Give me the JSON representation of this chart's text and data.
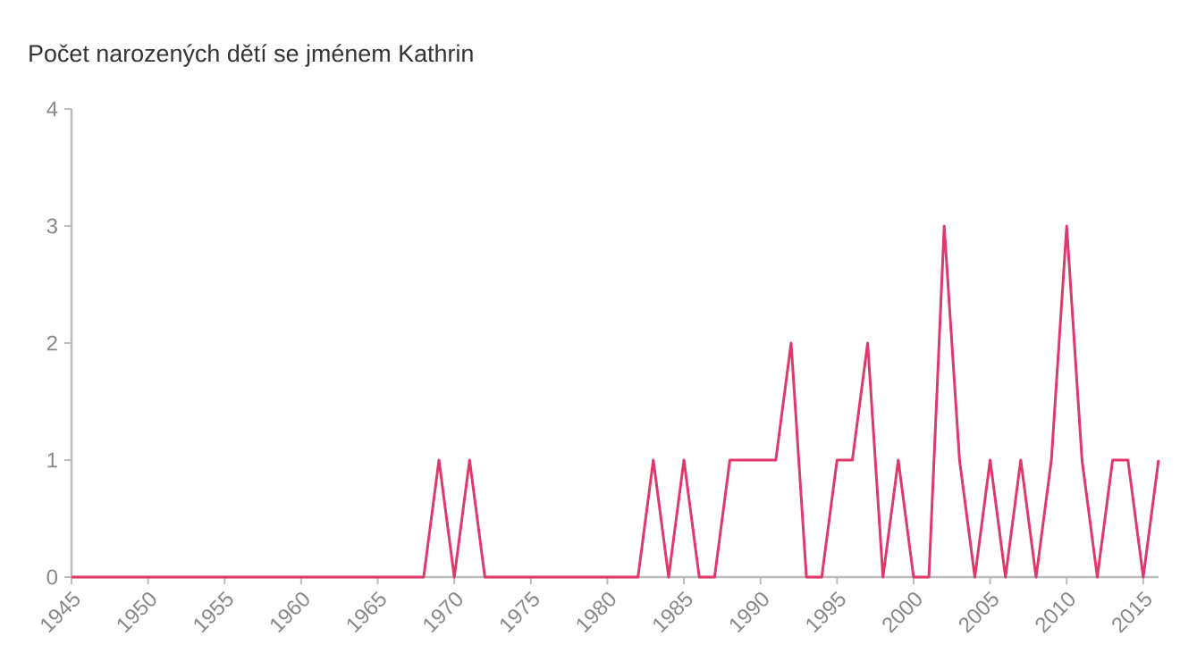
{
  "chart_data": {
    "type": "line",
    "title": "Počet narozených dětí se jménem Kathrin",
    "x": [
      1945,
      1946,
      1947,
      1948,
      1949,
      1950,
      1951,
      1952,
      1953,
      1954,
      1955,
      1956,
      1957,
      1958,
      1959,
      1960,
      1961,
      1962,
      1963,
      1964,
      1965,
      1966,
      1967,
      1968,
      1969,
      1970,
      1971,
      1972,
      1973,
      1974,
      1975,
      1976,
      1977,
      1978,
      1979,
      1980,
      1981,
      1982,
      1983,
      1984,
      1985,
      1986,
      1987,
      1988,
      1989,
      1990,
      1991,
      1992,
      1993,
      1994,
      1995,
      1996,
      1997,
      1998,
      1999,
      2000,
      2001,
      2002,
      2003,
      2004,
      2005,
      2006,
      2007,
      2008,
      2009,
      2010,
      2011,
      2012,
      2013,
      2014,
      2015,
      2016
    ],
    "series": [
      {
        "color": "#e0386b",
        "values": [
          0,
          0,
          0,
          0,
          0,
          0,
          0,
          0,
          0,
          0,
          0,
          0,
          0,
          0,
          0,
          0,
          0,
          0,
          0,
          0,
          0,
          0,
          0,
          0,
          1,
          0,
          1,
          0,
          0,
          0,
          0,
          0,
          0,
          0,
          0,
          0,
          0,
          0,
          1,
          0,
          1,
          0,
          0,
          1,
          1,
          1,
          1,
          2,
          0,
          0,
          1,
          1,
          2,
          0,
          1,
          0,
          0,
          3,
          1,
          0,
          1,
          0,
          1,
          0,
          1,
          3,
          1,
          0,
          1,
          1,
          0,
          1
        ]
      }
    ],
    "xlim": [
      1945,
      2016
    ],
    "ylim": [
      0,
      4
    ],
    "xticks": [
      1945,
      1950,
      1955,
      1960,
      1965,
      1970,
      1975,
      1980,
      1985,
      1990,
      1995,
      2000,
      2005,
      2010,
      2015
    ],
    "yticks": [
      0,
      1,
      2,
      3,
      4
    ]
  }
}
